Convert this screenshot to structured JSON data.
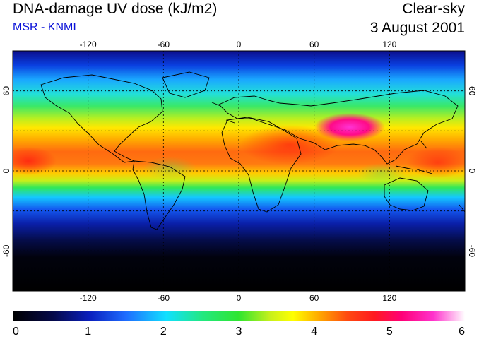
{
  "header": {
    "title": "DNA-damage UV dose (kJ/m2)",
    "subtitle": "MSR - KNMI",
    "condition": "Clear-sky",
    "date": "3 August 2001"
  },
  "map": {
    "projection": "equirectangular",
    "lon_range": [
      -180,
      180
    ],
    "lat_range": [
      -90,
      90
    ],
    "lon_ticks": [
      "-120",
      "-60",
      "0",
      "60",
      "120"
    ],
    "lon_tick_values": [
      -120,
      -60,
      0,
      60,
      120
    ],
    "lat_ticks": [
      "60",
      "0",
      "-60"
    ],
    "lat_tick_values": [
      60,
      0,
      -60
    ],
    "grid_dashed": true,
    "coastlines": true
  },
  "colorbar": {
    "min": 0,
    "max": 6,
    "labels": [
      "0",
      "1",
      "2",
      "3",
      "4",
      "5",
      "6"
    ],
    "colors": [
      "#000000",
      "#0a1a9e",
      "#1f6cff",
      "#11e0ff",
      "#2fe55a",
      "#9ef02b",
      "#ffff00",
      "#ffa500",
      "#ff3a1a",
      "#ff0066",
      "#ff33cc",
      "#ffffff"
    ]
  }
}
